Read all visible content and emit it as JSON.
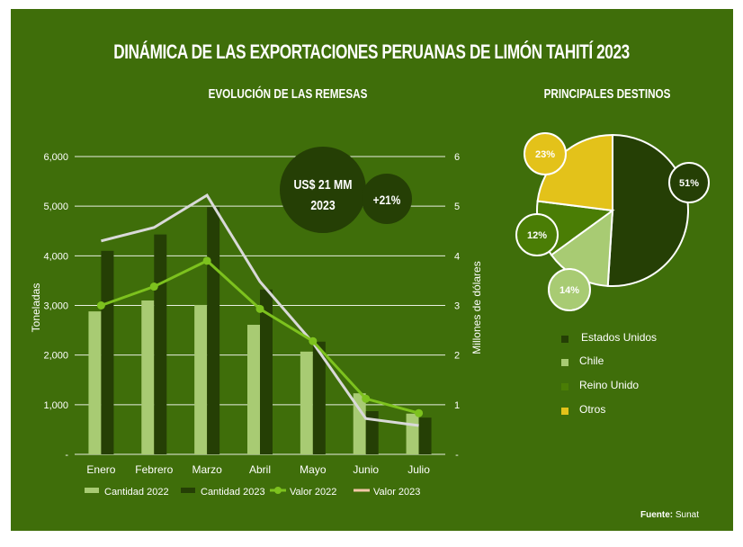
{
  "title": "DINÁMICA DE LAS EXPORTACIONES PERUANAS DE LIMÓN TAHITÍ  2023",
  "colors": {
    "background": "#3f6e0a",
    "cantidad_2022": "#a8cb73",
    "cantidad_2023": "#253f05",
    "valor_2022": "#7dc21e",
    "valor_2023": "#d9d9d9",
    "valor_2023_legend": "#f4c7a8",
    "estados_unidos": "#253f05",
    "chile": "#a8cb73",
    "reino_unido": "#4a7d05",
    "otros": "#e3c21a"
  },
  "callout": {
    "amount_line1": "US$ 21 MM",
    "amount_line2": "2023",
    "growth": "+21%"
  },
  "source": {
    "label": "Fuente:",
    "value": "Sunat"
  },
  "chart_data": [
    {
      "type": "bar",
      "title": "EVOLUCIÓN DE LAS REMESAS",
      "xlabel": "",
      "ylabel": "Toneladas",
      "y2label": "Millones de dólares",
      "categories": [
        "Enero",
        "Febrero",
        "Marzo",
        "Abril",
        "Mayo",
        "Junio",
        "Julio"
      ],
      "ylim": [
        0,
        6000
      ],
      "y_ticks": [
        "-",
        "1,000",
        "2,000",
        "3,000",
        "4,000",
        "5,000",
        "6,000"
      ],
      "y2lim": [
        0,
        6
      ],
      "y2_ticks": [
        "-",
        "1",
        "2",
        "3",
        "4",
        "5",
        "6"
      ],
      "grid": true,
      "legend": "bottom",
      "series": [
        {
          "name": "Cantidad 2022",
          "kind": "bar",
          "axis": "left",
          "values": [
            2880,
            3100,
            3010,
            2610,
            2070,
            1230,
            820
          ]
        },
        {
          "name": "Cantidad 2023",
          "kind": "bar",
          "axis": "left",
          "values": [
            4100,
            4430,
            4980,
            3320,
            2270,
            870,
            740
          ]
        },
        {
          "name": "Valor 2022",
          "kind": "line-marker",
          "axis": "right",
          "values": [
            3.0,
            3.38,
            3.9,
            2.93,
            2.28,
            1.12,
            0.83
          ]
        },
        {
          "name": "Valor 2023",
          "kind": "line",
          "axis": "right",
          "values": [
            4.3,
            4.57,
            5.22,
            3.48,
            2.25,
            0.72,
            0.58
          ]
        }
      ]
    },
    {
      "type": "pie",
      "title": "PRINCIPALES DESTINOS",
      "legend": "bottom",
      "slices": [
        {
          "label": "Estados Unidos",
          "value": 51,
          "display": "51%"
        },
        {
          "label": "Chile",
          "value": 14,
          "display": "14%"
        },
        {
          "label": "Reino Unido",
          "value": 12,
          "display": "12%"
        },
        {
          "label": "Otros",
          "value": 23,
          "display": "23%"
        }
      ]
    }
  ]
}
